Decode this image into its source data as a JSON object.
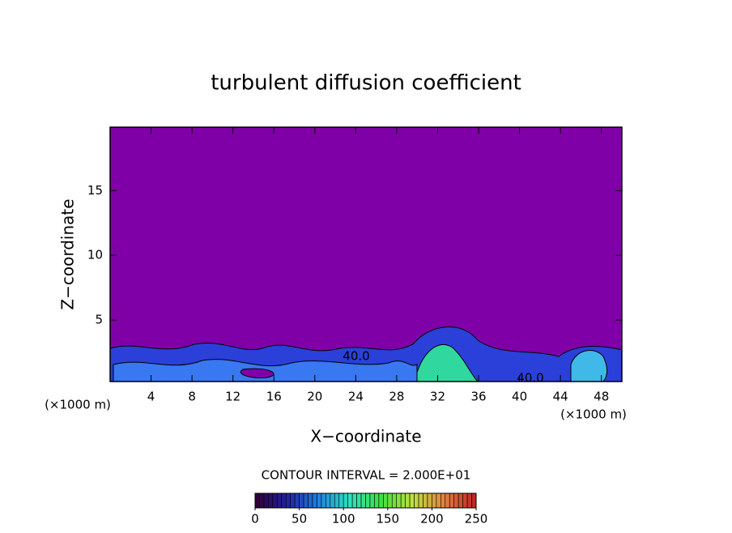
{
  "chart_data": {
    "type": "contour",
    "title": "turbulent diffusion coefficient",
    "xlabel": "X−coordinate",
    "ylabel": "Z−coordinate",
    "x_unit_label": "(×1000 m)",
    "xlim": [
      0,
      50
    ],
    "xticks": [
      4,
      8,
      12,
      16,
      20,
      24,
      28,
      32,
      36,
      40,
      44,
      48
    ],
    "ylim": [
      0.25,
      19.9
    ],
    "yticks": [
      5,
      10,
      15
    ],
    "background_color": "#8000a8",
    "contour_labels": [
      "40.0",
      "40.0"
    ],
    "colorbar": {
      "title": "CONTOUR INTERVAL = 2.000E+01",
      "lim": [
        0,
        250
      ],
      "ticks": [
        0,
        50,
        100,
        150,
        200,
        250
      ],
      "colors": [
        "#300030",
        "#2020a0",
        "#2080e0",
        "#30e0c0",
        "#40e040",
        "#c0e040",
        "#e08040",
        "#c02020"
      ]
    }
  }
}
